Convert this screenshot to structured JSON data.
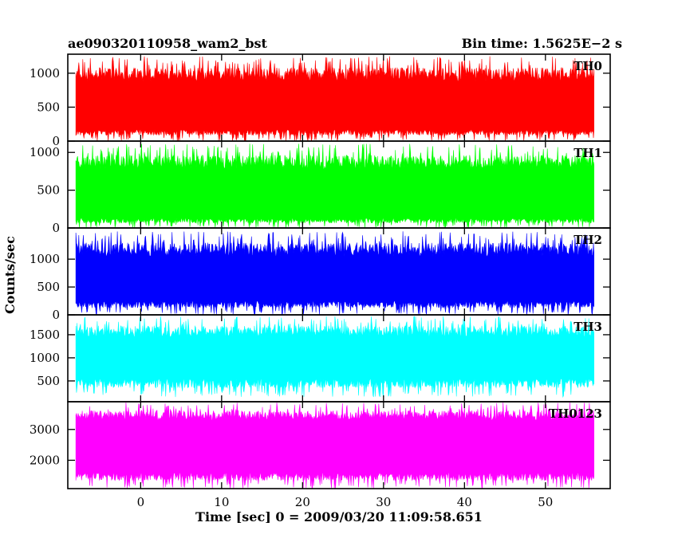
{
  "header": {
    "left_title": "ae090320110958_wam2_bst",
    "right_title": "Bin time: 1.5625E−2 s"
  },
  "chart_data": {
    "type": "line",
    "xlabel": "Time [sec] 0 = 2009/03/20 11:09:58.651",
    "ylabel": "Counts/sec",
    "xlim": [
      -9,
      58
    ],
    "x_start": -8,
    "x_end": 56,
    "bin_time": 0.015625,
    "x_ticks": [
      0,
      10,
      20,
      30,
      40,
      50
    ],
    "x_tick_labels": [
      "0",
      "10",
      "20",
      "30",
      "40",
      "50"
    ],
    "series": [
      {
        "name": "TH0",
        "color": "#ff0000",
        "ylim": [
          0,
          1280
        ],
        "low_range": [
          0,
          170
        ],
        "high_range": [
          880,
          1250
        ],
        "y_ticks": [
          0,
          500,
          1000
        ],
        "y_tick_labels": [
          "0",
          "500",
          "1000"
        ]
      },
      {
        "name": "TH1",
        "color": "#00ff00",
        "ylim": [
          0,
          1150
        ],
        "low_range": [
          0,
          130
        ],
        "high_range": [
          780,
          1120
        ],
        "y_ticks": [
          0,
          500,
          1000
        ],
        "y_tick_labels": [
          "0",
          "500",
          "1000"
        ]
      },
      {
        "name": "TH2",
        "color": "#0000ff",
        "ylim": [
          0,
          1560
        ],
        "low_range": [
          0,
          250
        ],
        "high_range": [
          1050,
          1500
        ],
        "y_ticks": [
          0,
          500,
          1000
        ],
        "y_tick_labels": [
          "0",
          "500",
          "1000"
        ]
      },
      {
        "name": "TH3",
        "color": "#00ffff",
        "ylim": [
          50,
          1930
        ],
        "low_range": [
          150,
          550
        ],
        "high_range": [
          1450,
          1900
        ],
        "y_ticks": [
          500,
          1000,
          1500
        ],
        "y_tick_labels": [
          "500",
          "1000",
          "1500"
        ]
      },
      {
        "name": "TH0123",
        "color": "#ff00ff",
        "ylim": [
          1080,
          3900
        ],
        "low_range": [
          1080,
          1600
        ],
        "high_range": [
          3300,
          3880
        ],
        "y_ticks": [
          2000,
          3000
        ],
        "y_tick_labels": [
          "2000",
          "3000"
        ]
      }
    ]
  }
}
